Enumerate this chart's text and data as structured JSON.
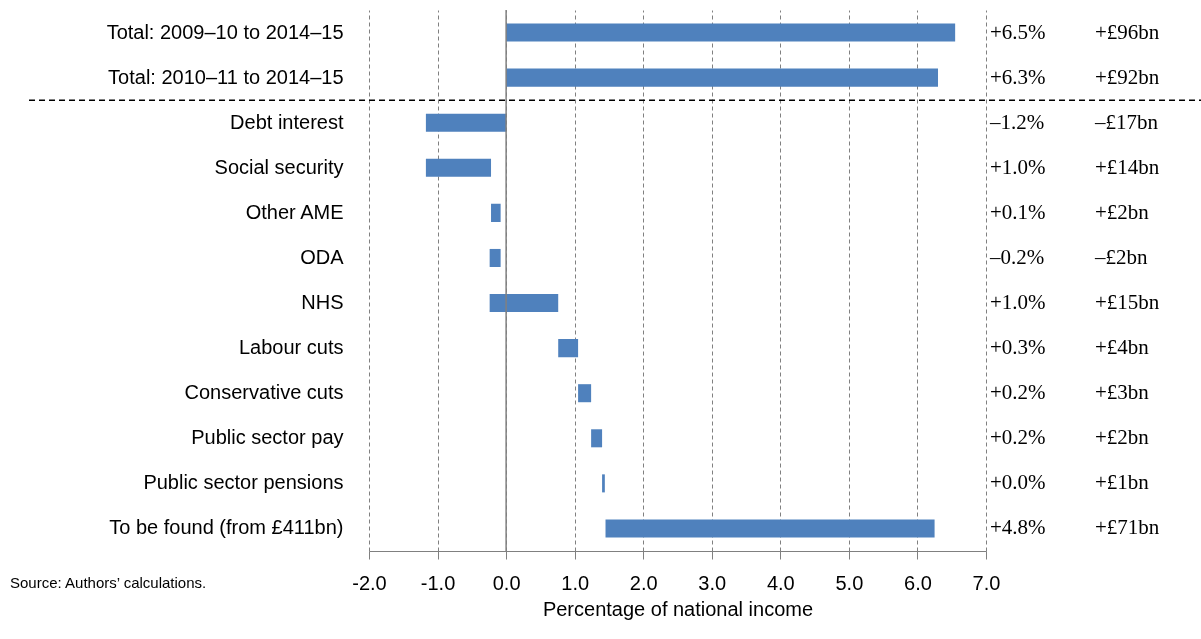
{
  "chart_data": {
    "type": "bar",
    "orientation": "horizontal",
    "xlabel": "Percentage of national income",
    "categories": [
      "Total: 2009–10 to 2014–15",
      "Total: 2010–11 to 2014–15",
      "Debt interest",
      "Social security",
      "Other AME",
      "ODA",
      "NHS",
      "Labour cuts",
      "Conservative cuts",
      "Public sector pay",
      "Public sector pensions",
      "To be found (from £411bn)"
    ],
    "values": [
      6.55,
      6.3,
      -1.17,
      0.95,
      0.14,
      -0.16,
      1.0,
      0.29,
      0.19,
      0.16,
      0.04,
      4.8
    ],
    "base": [
      0,
      0,
      0,
      -1.17,
      -0.22,
      -0.08,
      -0.24,
      0.76,
      1.05,
      1.24,
      1.4,
      1.45
    ],
    "color": "#4f81bd",
    "value_labels": [
      "+6.5%",
      "+6.3%",
      "–1.2%",
      "+1.0%",
      "+0.1%",
      "–0.2%",
      "+1.0%",
      "+0.3%",
      "+0.2%",
      "+0.2%",
      "+0.0%",
      "+4.8%"
    ],
    "xlim": [
      -2,
      7
    ],
    "xticks": [
      {
        "value": -2,
        "label": "-2.0"
      },
      {
        "value": -1,
        "label": "-1.0"
      },
      {
        "value": 0,
        "label": "0.0"
      },
      {
        "value": 1,
        "label": "1.0"
      },
      {
        "value": 2,
        "label": "2.0"
      },
      {
        "value": 3,
        "label": "3.0"
      },
      {
        "value": 4,
        "label": "4.0"
      },
      {
        "value": 5,
        "label": "5.0"
      },
      {
        "value": 6,
        "label": "6.0"
      },
      {
        "value": 7,
        "label": "7.0"
      }
    ],
    "grid": "x",
    "ref_lines": [
      {
        "axis": "y",
        "value": "Debt interest",
        "line_style": "dashed",
        "color": "#000000"
      }
    ],
    "annotations": [
      "+£96bn",
      "+£92bn",
      "–£17bn",
      "+£14bn",
      "+£2bn",
      "–£2bn",
      "+£15bn",
      "+£4bn",
      "+£3bn",
      "+£2bn",
      "+£1bn",
      "+£71bn",
      "Source: Authors’ calculations."
    ]
  }
}
